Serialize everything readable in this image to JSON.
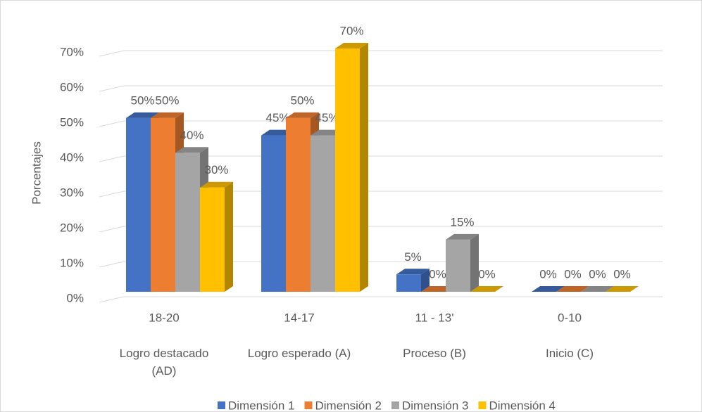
{
  "chart_data": {
    "type": "bar3d",
    "y_label": "Porcentajes",
    "categories": [
      "18-20",
      "14-17",
      "11 - 13'",
      "0-10"
    ],
    "groups": [
      "Logro destacado (AD)",
      "Logro esperado (A)",
      "Proceso (B)",
      "Inicio (C)"
    ],
    "series": [
      {
        "name": "Dimensión 1",
        "color": "#4472c4",
        "values": [
          50,
          45,
          5,
          0
        ],
        "value_labels": [
          "50%",
          "45%",
          "5%",
          "0%"
        ]
      },
      {
        "name": "Dimensión 2",
        "color": "#ed7d31",
        "values": [
          50,
          50,
          0,
          0
        ],
        "value_labels": [
          "50%",
          "50%",
          "0%",
          "0%"
        ]
      },
      {
        "name": "Dimensión 3",
        "color": "#a5a5a5",
        "values": [
          40,
          45,
          15,
          0
        ],
        "value_labels": [
          "40%",
          "45%",
          "15%",
          "0%"
        ]
      },
      {
        "name": "Dimensión 4",
        "color": "#ffc000",
        "values": [
          30,
          70,
          0,
          0
        ],
        "value_labels": [
          "30%",
          "70%",
          "0%",
          "0%"
        ]
      }
    ],
    "ylim": [
      0,
      70
    ],
    "yticks": [
      {
        "value": 0,
        "label": "0%"
      },
      {
        "value": 10,
        "label": "10%"
      },
      {
        "value": 20,
        "label": "20%"
      },
      {
        "value": 30,
        "label": "30%"
      },
      {
        "value": 40,
        "label": "40%"
      },
      {
        "value": 50,
        "label": "50%"
      },
      {
        "value": 60,
        "label": "60%"
      },
      {
        "value": 70,
        "label": "70%"
      }
    ],
    "grid": true,
    "legend": "bottom"
  }
}
